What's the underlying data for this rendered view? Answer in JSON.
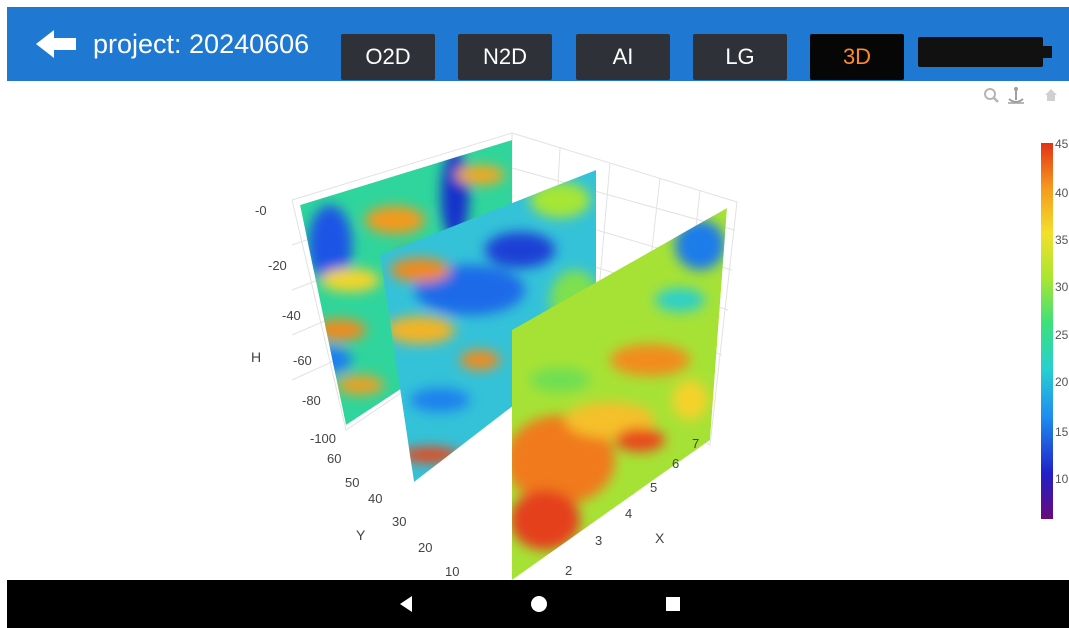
{
  "header": {
    "project_label": "project: 20240606",
    "tabs": [
      {
        "label": "O2D",
        "active": false
      },
      {
        "label": "N2D",
        "active": false
      },
      {
        "label": "AI",
        "active": false
      },
      {
        "label": "LG",
        "active": false
      },
      {
        "label": "3D",
        "active": true
      }
    ],
    "active_tab_color": "#ff8a2b",
    "bar_color": "#1f78d1"
  },
  "toolbar": {
    "icons": [
      "zoom-icon",
      "anchor-icon",
      "home-icon"
    ]
  },
  "chart_data": {
    "type": "heatmap",
    "title": "",
    "axes": {
      "H": {
        "label": "H",
        "ticks": [
          "-0",
          "-20",
          "-40",
          "-60",
          "-80",
          "-100"
        ],
        "range": [
          -100,
          0
        ]
      },
      "Y": {
        "label": "Y",
        "ticks": [
          "60",
          "50",
          "40",
          "30",
          "20",
          "10"
        ],
        "range": [
          10,
          60
        ]
      },
      "X": {
        "label": "X",
        "ticks": [
          "2",
          "3",
          "4",
          "5",
          "6",
          "7"
        ],
        "range": [
          2,
          7
        ]
      }
    },
    "colorbar": {
      "ticks": [
        "45",
        "40",
        "35",
        "30",
        "25",
        "20",
        "15",
        "10"
      ],
      "range": [
        6,
        45
      ],
      "colorscale": [
        "#6a0a7a",
        "#2020c8",
        "#1e8cf0",
        "#28d0d0",
        "#3ce07a",
        "#a8e632",
        "#f2e02c",
        "#f59a1e",
        "#e23216"
      ]
    },
    "slices": [
      {
        "name": "slice-x-2",
        "dominant_values": "mixed 15-40"
      },
      {
        "name": "slice-x-4",
        "dominant_values": "mixed 15-35"
      },
      {
        "name": "slice-x-6",
        "dominant_values": "mostly 25-45"
      }
    ]
  },
  "navbar": {
    "buttons": [
      "back-nav",
      "home-nav",
      "recents-nav"
    ]
  }
}
